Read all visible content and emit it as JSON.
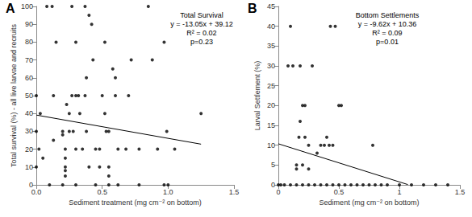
{
  "chart_data": [
    {
      "type": "scatter",
      "title": "A",
      "annotation": [
        "Total Survival",
        "y = -13.05x + 39.12",
        "R² = 0.02",
        "p=0.23"
      ],
      "x_label": "Sediment treatment (mg cm⁻² on bottom)",
      "y_label": "Total survival (%) - all live larvae and recruits",
      "xlim": [
        0,
        1.5
      ],
      "xticks": [
        {
          "value": 0,
          "label": "0.0"
        },
        {
          "value": 0.5,
          "label": "0.5"
        },
        {
          "value": 1,
          "label": "1.0"
        },
        {
          "value": 1.5,
          "label": "1.5"
        }
      ],
      "ylim": [
        0,
        100
      ],
      "yticks": [
        0,
        10,
        20,
        30,
        40,
        50,
        60,
        70,
        80,
        90,
        100
      ],
      "grid": false,
      "color": "#000000",
      "marker": "circle",
      "x": [
        0.0,
        0.0,
        0.0,
        0.02,
        0.03,
        0.05,
        0.08,
        0.12,
        0.13,
        0.15,
        0.13,
        0.2,
        0.2,
        0.22,
        0.22,
        0.22,
        0.22,
        0.22,
        0.25,
        0.25,
        0.23,
        0.27,
        0.27,
        0.28,
        0.3,
        0.3,
        0.3,
        0.32,
        0.33,
        0.35,
        0.37,
        0.37,
        0.38,
        0.38,
        0.4,
        0.4,
        0.42,
        0.43,
        0.45,
        0.48,
        0.48,
        0.5,
        0.52,
        0.52,
        0.53,
        0.55,
        0.55,
        0.55,
        0.58,
        0.6,
        0.6,
        0.62,
        0.62,
        0.68,
        0.7,
        0.72,
        0.78,
        0.78,
        0.85,
        0.88,
        0.92,
        0.97,
        0.97,
        0.99,
        1.0,
        1.05,
        1.25,
        0.1,
        0.2,
        0.3,
        0.45,
        0.55
      ],
      "values": [
        50,
        30,
        10,
        20,
        40,
        15,
        100,
        100,
        50,
        80,
        25,
        30,
        28,
        20,
        15,
        10,
        8,
        5,
        40,
        30,
        45,
        100,
        50,
        30,
        20,
        80,
        50,
        50,
        40,
        20,
        100,
        50,
        60,
        30,
        10,
        95,
        90,
        70,
        20,
        20,
        10,
        50,
        80,
        40,
        30,
        30,
        10,
        5,
        65,
        60,
        50,
        20,
        0,
        20,
        50,
        70,
        20,
        0,
        100,
        70,
        20,
        80,
        0,
        30,
        0,
        20,
        40,
        0,
        0,
        0,
        0,
        0
      ],
      "trendline": {
        "slope": -13.05,
        "intercept": 39.12,
        "x": [
          0,
          1.25
        ],
        "color": "#000000"
      }
    },
    {
      "type": "scatter",
      "title": "B",
      "annotation": [
        "Bottom Settlements",
        "y = -9.62x + 10.36",
        "R² = 0.09",
        "p=0.01"
      ],
      "x_label": "Sediment (mg cm⁻² on bottom)",
      "y_label": "Larval Settlement (%)",
      "xlim": [
        0,
        1.5
      ],
      "xticks": [
        0,
        0.5,
        1,
        1.5
      ],
      "ylim": [
        0,
        45
      ],
      "yticks": [
        0,
        5,
        10,
        15,
        20,
        25,
        30,
        35,
        40,
        45
      ],
      "grid": false,
      "color": "#000000",
      "marker": "circle",
      "x": [
        0.1,
        0.08,
        0.12,
        0.18,
        0.2,
        0.22,
        0.18,
        0.17,
        0.15,
        0.2,
        0.22,
        0.25,
        0.28,
        0.32,
        0.35,
        0.38,
        0.4,
        0.42,
        0.43,
        0.45,
        0.47,
        0.5,
        0.52,
        0.15,
        0.25,
        0.78,
        0.0,
        0.02,
        0.05,
        0.1,
        0.15,
        0.2,
        0.25,
        0.3,
        0.35,
        0.4,
        0.45,
        0.5,
        0.55,
        0.6,
        0.65,
        0.7,
        0.75,
        0.8,
        0.85,
        0.9,
        1.0,
        1.1,
        1.2,
        1.3,
        1.4
      ],
      "values": [
        40,
        30,
        30,
        30,
        20,
        20,
        16,
        12,
        5,
        5,
        12,
        10,
        30,
        8,
        10,
        10,
        12,
        10,
        40,
        10,
        40,
        20,
        20,
        4,
        4,
        10,
        0,
        0,
        0,
        0,
        0,
        0,
        0,
        0,
        0,
        0,
        0,
        0,
        0,
        0,
        0,
        0,
        0,
        0,
        0,
        0,
        0,
        0,
        0,
        0,
        0
      ],
      "trendline": {
        "slope": -9.62,
        "intercept": 10.36,
        "x": [
          0,
          1.07
        ],
        "color": "#000000"
      }
    }
  ]
}
